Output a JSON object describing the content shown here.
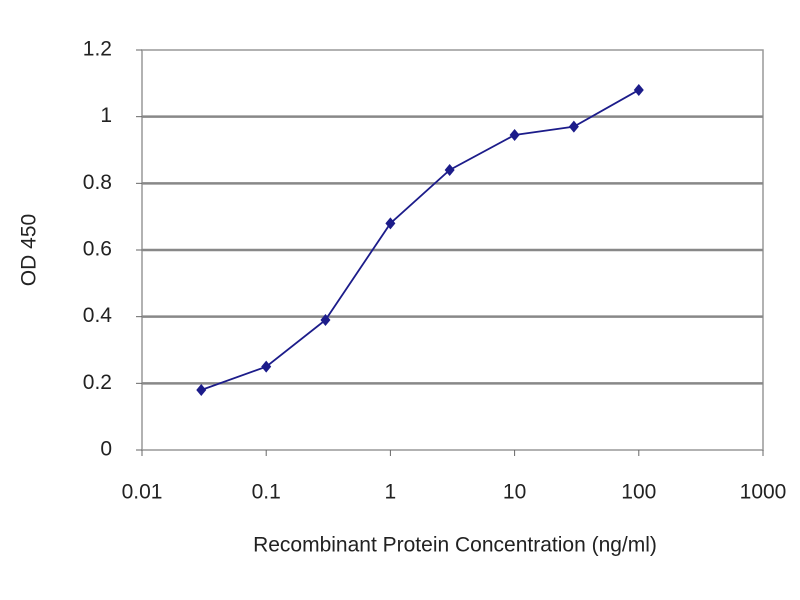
{
  "chart_data": {
    "type": "line",
    "xlabel": "Recombinant Protein Concentration (ng/ml)",
    "ylabel": "OD 450",
    "x": [
      0.03,
      0.1,
      0.3,
      1,
      3,
      10,
      30,
      100
    ],
    "series": [
      {
        "color": "#1c1c8a",
        "values": [
          0.18,
          0.25,
          0.39,
          0.68,
          0.84,
          0.945,
          0.97,
          1.08
        ]
      }
    ],
    "xscale": "log",
    "xlim": [
      0.01,
      1000
    ],
    "xticks": [
      0.01,
      0.1,
      1,
      10,
      100,
      1000
    ],
    "ylim": [
      0,
      1.2
    ],
    "yticks": [
      0,
      0.2,
      0.4,
      0.6,
      0.8,
      1,
      1.2
    ],
    "grid": true
  }
}
